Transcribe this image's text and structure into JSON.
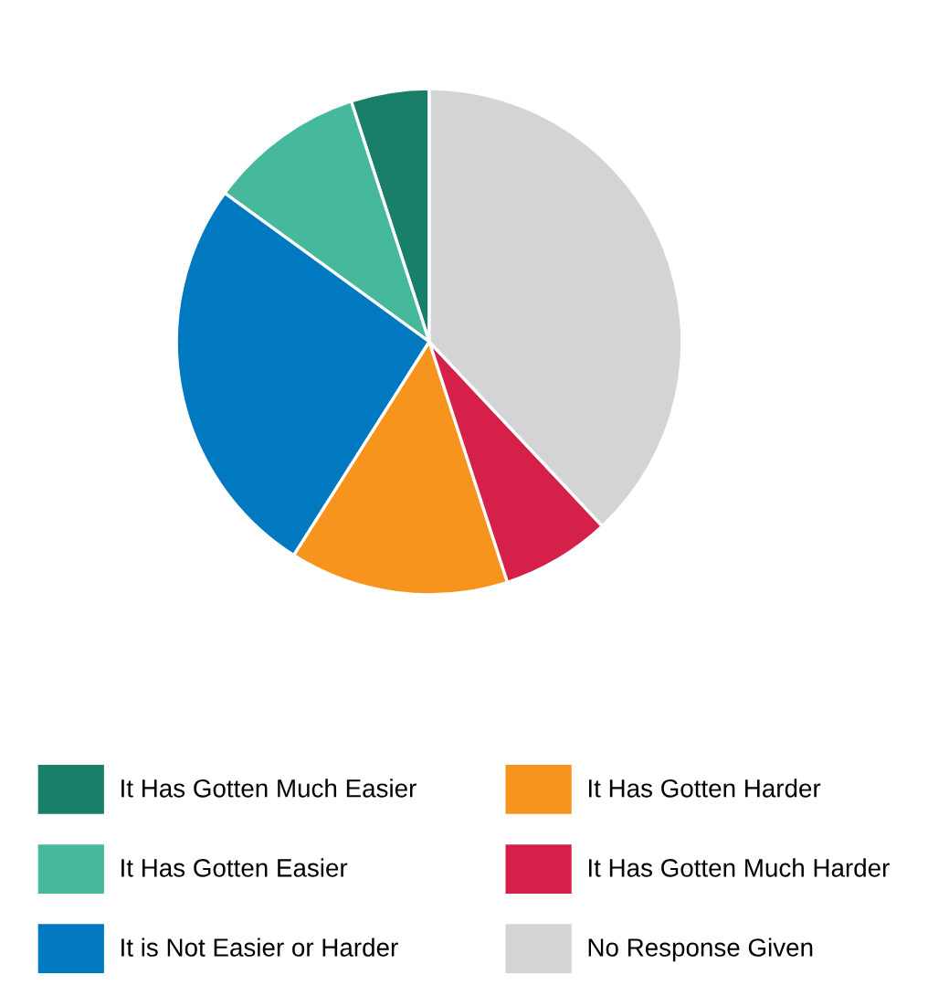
{
  "chart_data": {
    "type": "pie",
    "categories": [
      "It Has Gotten Much Easier",
      "It Has Gotten Easier",
      "It is Not Easier or Harder",
      "It Has Gotten Harder",
      "It Has Gotten Much Harder",
      "No Response Given"
    ],
    "values": [
      5,
      10,
      26,
      14,
      7,
      38
    ],
    "colors": [
      "#1a7f6a",
      "#46b89c",
      "#0079c1",
      "#f7941d",
      "#d5204a",
      "#d4d4d6"
    ],
    "legend": "bottom"
  }
}
